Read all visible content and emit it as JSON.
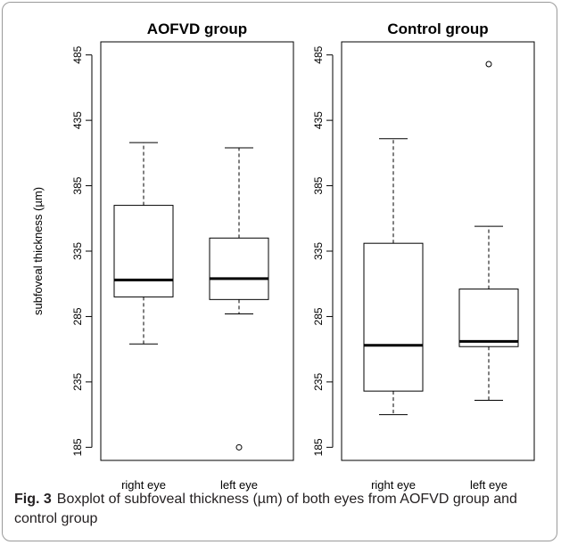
{
  "caption": {
    "label": "Fig. 3",
    "text": "Boxplot of subfoveal thickness (µm) of both eyes from AOFVD group and control group"
  },
  "chart_data": [
    {
      "type": "boxplot",
      "title": "AOFVD group",
      "ylabel": "subfoveal thickness (µm)",
      "ylim": [
        175,
        495
      ],
      "yticks": [
        185,
        235,
        285,
        335,
        385,
        435,
        485
      ],
      "categories": [
        "right eye",
        "left eye"
      ],
      "boxes": [
        {
          "name": "right eye",
          "whisker_low": 264,
          "q1": 300,
          "median": 313,
          "q3": 370,
          "whisker_high": 418,
          "outliers": []
        },
        {
          "name": "left eye",
          "whisker_low": 287,
          "q1": 298,
          "median": 314,
          "q3": 345,
          "whisker_high": 414,
          "outliers": [
            185
          ]
        }
      ]
    },
    {
      "type": "boxplot",
      "title": "Control group",
      "ylabel": "",
      "ylim": [
        175,
        495
      ],
      "yticks": [
        185,
        235,
        285,
        335,
        385,
        435,
        485
      ],
      "categories": [
        "right eye",
        "left eye"
      ],
      "boxes": [
        {
          "name": "right eye",
          "whisker_low": 210,
          "q1": 228,
          "median": 263,
          "q3": 341,
          "whisker_high": 421,
          "outliers": []
        },
        {
          "name": "left eye",
          "whisker_low": 221,
          "q1": 262,
          "median": 266,
          "q3": 306,
          "whisker_high": 354,
          "outliers": [
            478
          ]
        }
      ]
    }
  ]
}
